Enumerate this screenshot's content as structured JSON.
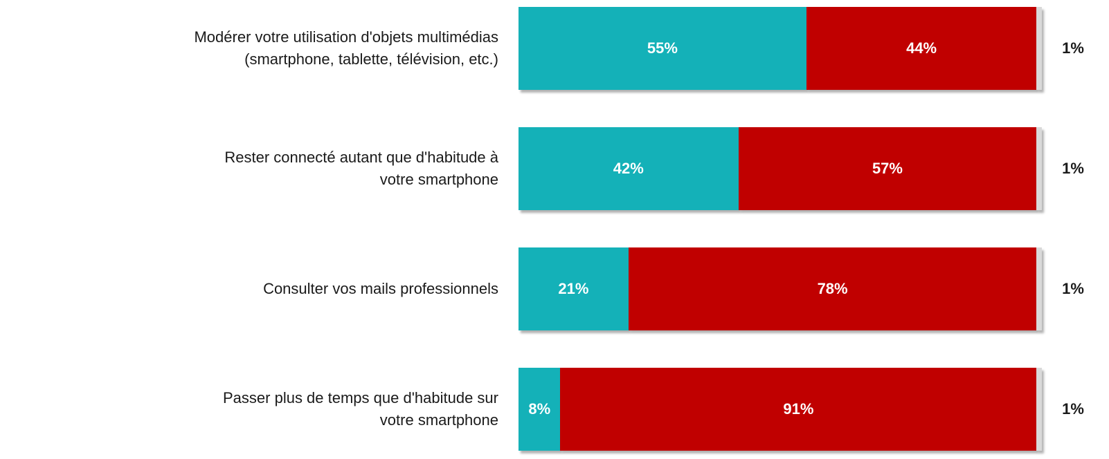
{
  "chart_data": {
    "type": "stacked-bar-horizontal",
    "categories": [
      "Modérer votre utilisation d'objets multimédias (smartphone, tablette, télévision, etc.)",
      "Rester connecté autant que d'habitude à votre smartphone",
      "Consulter vos mails professionnels",
      "Passer plus de temps que d'habitude sur votre smartphone"
    ],
    "series": [
      {
        "color": "#14b1b8",
        "values": [
          55,
          42,
          21,
          8
        ],
        "value_labels": [
          "55%",
          "42%",
          "21%",
          "8%"
        ]
      },
      {
        "color": "#c00000",
        "values": [
          44,
          57,
          78,
          91
        ],
        "value_labels": [
          "44%",
          "57%",
          "78%",
          "91%"
        ]
      },
      {
        "color": "#d9d9d9",
        "values": [
          1,
          1,
          1,
          1
        ],
        "value_labels": [
          "1%",
          "1%",
          "1%",
          "1%"
        ]
      }
    ],
    "xlim": [
      0,
      100
    ]
  }
}
